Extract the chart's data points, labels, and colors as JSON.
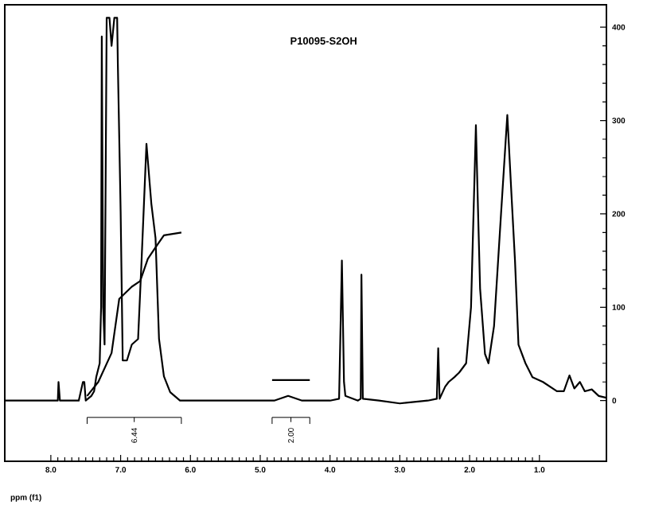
{
  "chart_data": {
    "type": "line",
    "title": "P10095-S2OH",
    "xlabel": "ppm (f1)",
    "xlim": [
      8.66,
      0.04
    ],
    "ylim": [
      -65,
      424
    ],
    "xticks": [
      {
        "value": 8,
        "label": "8.0"
      },
      {
        "value": 7,
        "label": "7.0"
      },
      {
        "value": 6,
        "label": "6.0"
      },
      {
        "value": 5,
        "label": "5.0"
      },
      {
        "value": 4,
        "label": "4.0"
      },
      {
        "value": 3,
        "label": "3.0"
      },
      {
        "value": 2,
        "label": "2.0"
      },
      {
        "value": 1,
        "label": "1.0"
      }
    ],
    "yticks": [
      0,
      100,
      200,
      300,
      400
    ],
    "tick_labels": true,
    "grid": false,
    "marker": "none",
    "line_style": "solid",
    "series": [
      {
        "color": "#000000",
        "x": [
          8.66,
          7.95,
          7.9,
          7.89,
          7.87,
          7.8,
          7.6,
          7.54,
          7.52,
          7.5,
          7.42,
          7.38,
          7.35,
          7.3,
          7.28,
          7.27,
          7.25,
          7.23,
          7.2,
          7.18,
          7.16,
          7.13,
          7.09,
          7.07,
          7.05,
          7.04,
          7.0,
          6.97,
          6.91,
          6.84,
          6.75,
          6.7,
          6.63,
          6.56,
          6.5,
          6.45,
          6.38,
          6.29,
          6.15,
          5.0,
          4.8,
          4.6,
          4.4,
          4.0,
          3.87,
          3.83,
          3.8,
          3.78,
          3.6,
          3.56,
          3.55,
          3.53,
          3.3,
          3.0,
          2.6,
          2.47,
          2.45,
          2.43,
          2.35,
          2.3,
          2.22,
          2.15,
          2.05,
          1.98,
          1.91,
          1.88,
          1.85,
          1.78,
          1.73,
          1.65,
          1.55,
          1.46,
          1.4,
          1.35,
          1.3,
          1.2,
          1.1,
          0.95,
          0.85,
          0.75,
          0.65,
          0.57,
          0.5,
          0.42,
          0.35,
          0.25,
          0.15,
          0.04
        ],
        "values": [
          0,
          0,
          0,
          20,
          0,
          0,
          0,
          20,
          20,
          0,
          5,
          10,
          25,
          40,
          100,
          390,
          100,
          60,
          410,
          null,
          410,
          380,
          410,
          null,
          410,
          361,
          203,
          43,
          43,
          60,
          66,
          150,
          275,
          211,
          174,
          66,
          26,
          9,
          0,
          0,
          0,
          5,
          0,
          0,
          2,
          150,
          20,
          5,
          0,
          2,
          135,
          2,
          0,
          -3,
          0,
          2,
          56,
          2,
          15,
          20,
          25,
          30,
          40,
          100,
          295,
          205,
          120,
          50,
          40,
          80,
          200,
          306,
          220,
          150,
          60,
          40,
          25,
          20,
          15,
          10,
          10,
          27,
          13,
          20,
          10,
          12,
          5,
          3
        ]
      },
      {
        "color": "#000000",
        "x": [
          7.48,
          7.32,
          7.13,
          7.02,
          6.84,
          6.72,
          6.61,
          6.52,
          6.38,
          6.13
        ],
        "values": [
          5,
          20,
          51,
          109,
          122,
          128,
          152,
          162,
          177,
          180
        ]
      },
      {
        "color": "#000000",
        "x": [
          4.83,
          4.29
        ],
        "values": [
          22,
          22
        ]
      }
    ],
    "annotations": [
      "6.44",
      "2.00"
    ]
  }
}
